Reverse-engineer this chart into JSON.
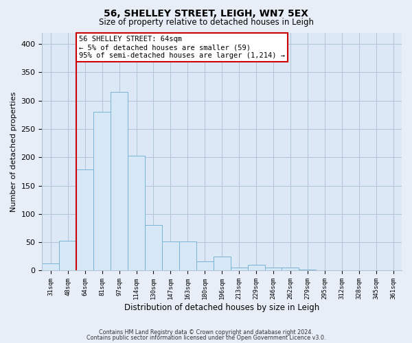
{
  "title": "56, SHELLEY STREET, LEIGH, WN7 5EX",
  "subtitle": "Size of property relative to detached houses in Leigh",
  "xlabel": "Distribution of detached houses by size in Leigh",
  "ylabel": "Number of detached properties",
  "categories": [
    "31sqm",
    "48sqm",
    "64sqm",
    "81sqm",
    "97sqm",
    "114sqm",
    "130sqm",
    "147sqm",
    "163sqm",
    "180sqm",
    "196sqm",
    "213sqm",
    "229sqm",
    "246sqm",
    "262sqm",
    "279sqm",
    "295sqm",
    "312sqm",
    "328sqm",
    "345sqm",
    "361sqm"
  ],
  "values": [
    13,
    53,
    178,
    280,
    315,
    203,
    81,
    51,
    51,
    16,
    25,
    5,
    10,
    5,
    5,
    2,
    1,
    0,
    0,
    0,
    1
  ],
  "bar_color": "#d6e8f5",
  "bar_edge_color": "#7ab3d3",
  "highlight_index": 2,
  "highlight_color": "#cc0000",
  "ylim": [
    0,
    420
  ],
  "yticks": [
    0,
    50,
    100,
    150,
    200,
    250,
    300,
    350,
    400
  ],
  "annotation_title": "56 SHELLEY STREET: 64sqm",
  "annotation_line1": "← 5% of detached houses are smaller (59)",
  "annotation_line2": "95% of semi-detached houses are larger (1,214) →",
  "footer_line1": "Contains HM Land Registry data © Crown copyright and database right 2024.",
  "footer_line2": "Contains public sector information licensed under the Open Government Licence v3.0.",
  "background_color": "#e8eef8",
  "plot_background": "#dce8f5"
}
